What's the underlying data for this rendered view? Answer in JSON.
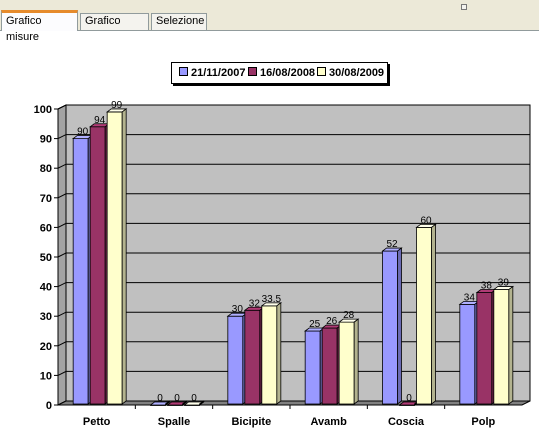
{
  "tabs": [
    {
      "label": "Grafico misure",
      "active": true
    },
    {
      "label": "Grafico peso",
      "active": false
    },
    {
      "label": "Selezione",
      "active": false
    }
  ],
  "colors": {
    "plot_bg": "#c0c0c0",
    "floor": "#808080",
    "series": [
      "#9999ff",
      "#993366",
      "#ffffcc"
    ]
  },
  "chart_data": {
    "type": "bar",
    "style": "3d-clustered-column",
    "categories": [
      "Petto",
      "Spalle",
      "Bicipite",
      "Avamb",
      "Coscia",
      "Polp"
    ],
    "series": [
      {
        "name": "21/11/2007",
        "values": [
          90,
          0,
          30,
          25,
          52,
          34
        ],
        "labels": [
          "90",
          "0",
          "30",
          "25",
          "52",
          "34"
        ]
      },
      {
        "name": "16/08/2008",
        "values": [
          94,
          0,
          32,
          26,
          0,
          38
        ],
        "labels": [
          "94",
          "0",
          "32",
          "26",
          "0",
          "38"
        ]
      },
      {
        "name": "30/08/2009",
        "values": [
          99,
          0,
          33.5,
          28,
          60,
          39
        ],
        "labels": [
          "99",
          "0",
          "33.5",
          "28",
          "60",
          "39"
        ]
      }
    ],
    "ylim": [
      0,
      100
    ],
    "yticks": [
      0,
      10,
      20,
      30,
      40,
      50,
      60,
      70,
      80,
      90,
      100
    ],
    "title": "",
    "xlabel": "",
    "ylabel": "",
    "legend_position": "top",
    "grid": true
  }
}
